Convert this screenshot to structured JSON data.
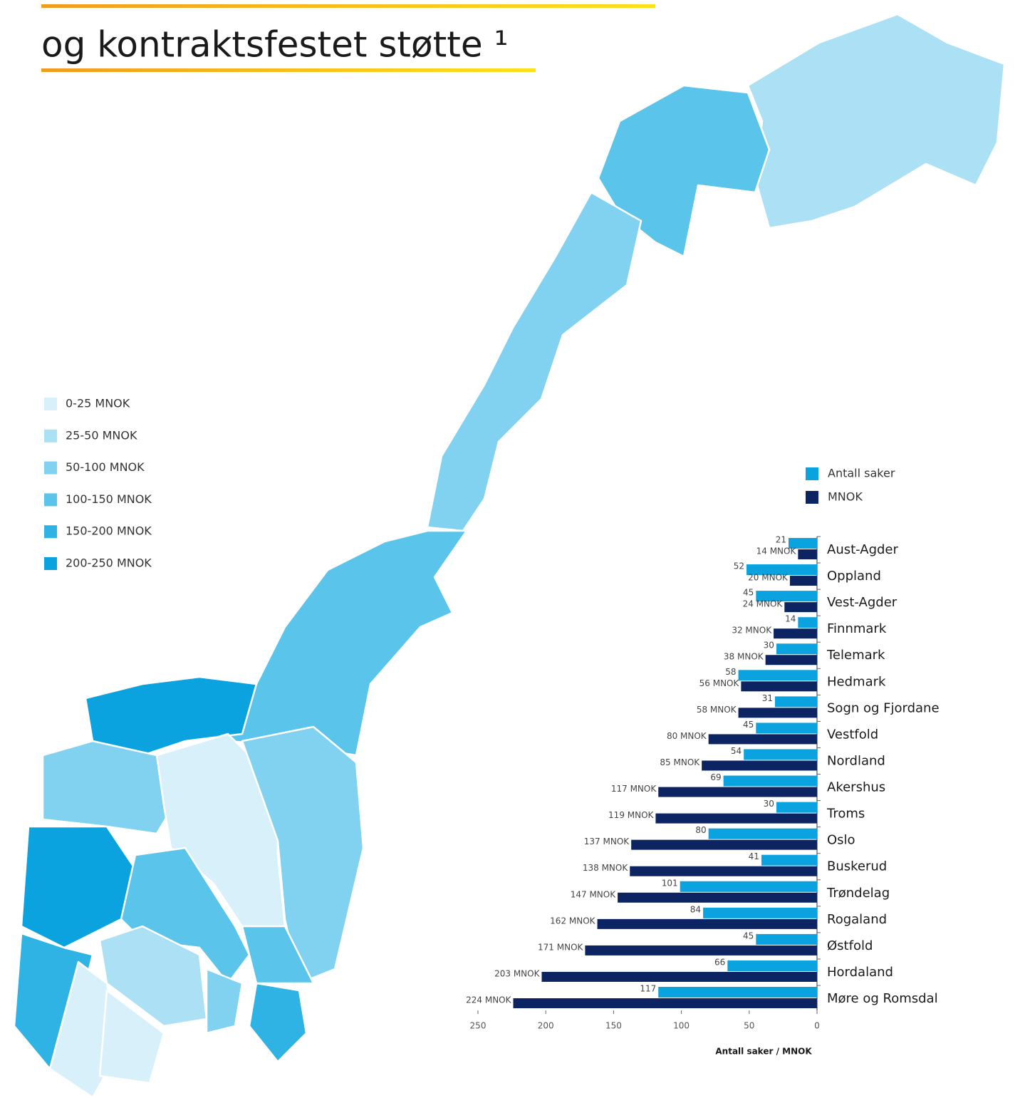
{
  "title": "og kontraktsfestet støtte ¹",
  "map_legend": [
    {
      "label": "0-25 MNOK",
      "color": "#d8f0fa"
    },
    {
      "label": "25-50 MNOK",
      "color": "#abe0f5"
    },
    {
      "label": "50-100 MNOK",
      "color": "#80d2f0"
    },
    {
      "label": "100-150 MNOK",
      "color": "#5bc4eb"
    },
    {
      "label": "150-200 MNOK",
      "color": "#2fb2e4"
    },
    {
      "label": "200-250 MNOK",
      "color": "#0aa2df"
    }
  ],
  "chart_data": {
    "type": "bar",
    "categories": [
      "Aust-Agder",
      "Oppland",
      "Vest-Agder",
      "Finnmark",
      "Telemark",
      "Hedmark",
      "Sogn og Fjordane",
      "Vestfold",
      "Nordland",
      "Akershus",
      "Troms",
      "Oslo",
      "Buskerud",
      "Trøndelag",
      "Rogaland",
      "Østfold",
      "Hordaland",
      "Møre og Romsdal"
    ],
    "series": [
      {
        "name": "Antall saker",
        "color": "#0aa2df",
        "values": [
          21,
          52,
          45,
          14,
          30,
          58,
          31,
          45,
          54,
          69,
          30,
          80,
          41,
          101,
          84,
          45,
          66,
          117
        ]
      },
      {
        "name": "MNOK",
        "color": "#0c2461",
        "values": [
          14,
          20,
          24,
          32,
          38,
          56,
          58,
          80,
          85,
          117,
          119,
          137,
          138,
          147,
          162,
          171,
          203,
          224
        ],
        "value_labels": [
          "14 MNOK",
          "20 MNOK",
          "24 MNOK",
          "32 MNOK",
          "38 MNOK",
          "56 MNOK",
          "58 MNOK",
          "80 MNOK",
          "85 MNOK",
          "117 MNOK",
          "119 MNOK",
          "137 MNOK",
          "138 MNOK",
          "147 MNOK",
          "162 MNOK",
          "171 MNOK",
          "203 MNOK",
          "224 MNOK"
        ]
      }
    ],
    "xlim": [
      0,
      250
    ],
    "xticks": [
      250,
      200,
      150,
      100,
      50,
      0
    ],
    "x_reversed": true,
    "xlabel": "Antall saker / MNOK"
  }
}
